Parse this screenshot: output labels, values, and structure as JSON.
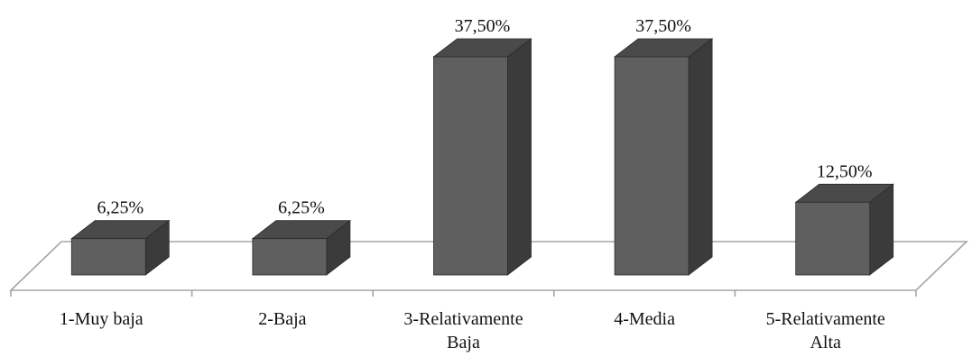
{
  "chart_data": {
    "type": "bar",
    "categories": [
      [
        "1-Muy baja"
      ],
      [
        "2-Baja"
      ],
      [
        "3-Relativamente",
        "Baja"
      ],
      [
        "4-Media"
      ],
      [
        "5-Relativamente",
        "Alta"
      ]
    ],
    "values": [
      6.25,
      6.25,
      37.5,
      37.5,
      12.5
    ],
    "data_labels": [
      "6,25%",
      "6,25%",
      "37,50%",
      "37,50%",
      "12,50%"
    ],
    "title": "",
    "xlabel": "",
    "ylabel": "",
    "ylim": [
      0,
      40
    ],
    "grid": false,
    "legend": "none",
    "style": "3d-column",
    "colors": {
      "front": "#5f5f5f",
      "top": "#4a4a4a",
      "side": "#3b3b3b",
      "edge": "#2a2a2a",
      "floor": "#a6a6a6"
    }
  }
}
